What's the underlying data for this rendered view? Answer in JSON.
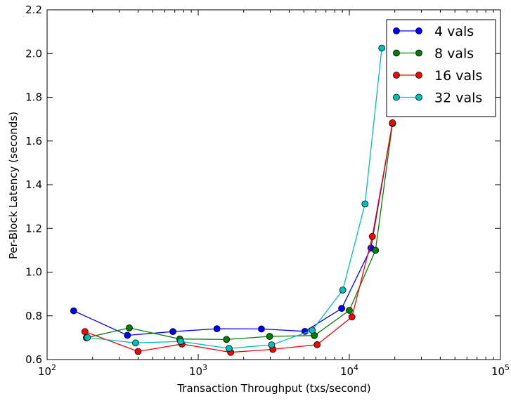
{
  "chart_data": {
    "type": "line",
    "title": "",
    "xlabel": "Transaction Throughput (txs/second)",
    "ylabel": "Per-Block Latency (seconds)",
    "xscale": "log",
    "xlim": [
      100,
      100000
    ],
    "ylim": [
      0.6,
      2.2
    ],
    "grid": false,
    "legend_position": "top-right",
    "x_tick_labels": [
      {
        "value": 100,
        "base": "10",
        "exp": "2"
      },
      {
        "value": 1000,
        "base": "10",
        "exp": "3"
      },
      {
        "value": 10000,
        "base": "10",
        "exp": "4"
      },
      {
        "value": 100000,
        "base": "10",
        "exp": "5"
      }
    ],
    "y_ticks": [
      0.6,
      0.8,
      1.0,
      1.2,
      1.4,
      1.6,
      1.8,
      2.0,
      2.2
    ],
    "y_tick_labels": [
      "0.6",
      "0.8",
      "1.0",
      "1.2",
      "1.4",
      "1.6",
      "1.8",
      "2.0",
      "2.2"
    ],
    "series": [
      {
        "name": "4 vals",
        "color": "#0000ff",
        "points": [
          [
            150,
            0.823
          ],
          [
            340,
            0.711
          ],
          [
            680,
            0.728
          ],
          [
            1330,
            0.741
          ],
          [
            2620,
            0.74
          ],
          [
            5080,
            0.729
          ],
          [
            8900,
            0.834
          ],
          [
            13900,
            1.11
          ],
          [
            19300,
            1.682
          ]
        ]
      },
      {
        "name": "8 vals",
        "color": "#008000",
        "points": [
          [
            182,
            0.7
          ],
          [
            350,
            0.745
          ],
          [
            755,
            0.694
          ],
          [
            1540,
            0.692
          ],
          [
            2970,
            0.706
          ],
          [
            5870,
            0.71
          ],
          [
            10000,
            0.825
          ],
          [
            14900,
            1.1
          ],
          [
            19300,
            1.68
          ]
        ]
      },
      {
        "name": "16 vals",
        "color": "#ff0000",
        "points": [
          [
            178,
            0.728
          ],
          [
            400,
            0.637
          ],
          [
            780,
            0.671
          ],
          [
            1640,
            0.633
          ],
          [
            3120,
            0.647
          ],
          [
            6120,
            0.668
          ],
          [
            10400,
            0.795
          ],
          [
            14200,
            1.163
          ],
          [
            19300,
            1.683
          ]
        ]
      },
      {
        "name": "32 vals",
        "color": "#00bfbf",
        "points": [
          [
            185,
            0.701
          ],
          [
            385,
            0.676
          ],
          [
            765,
            0.683
          ],
          [
            1600,
            0.651
          ],
          [
            3060,
            0.667
          ],
          [
            5680,
            0.734
          ],
          [
            9050,
            0.918
          ],
          [
            12700,
            1.312
          ],
          [
            16400,
            2.025
          ]
        ]
      }
    ]
  }
}
